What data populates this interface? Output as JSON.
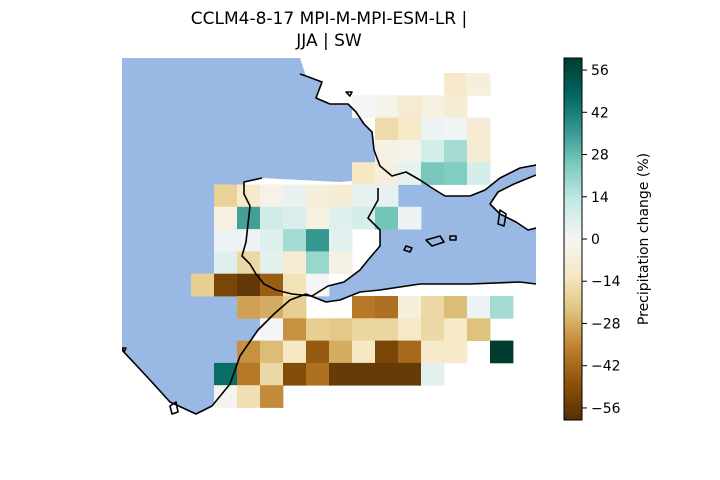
{
  "title": {
    "line1": "CCLM4-8-17 MPI-M-MPI-ESM-LR |",
    "line2": "JJA | SW"
  },
  "colorbar": {
    "label": "Precipitation change (%)",
    "vmin": -60,
    "vmax": 60,
    "ticks": [
      56,
      42,
      28,
      14,
      0,
      -14,
      -28,
      -42,
      -56
    ],
    "tick_labels": [
      "56",
      "42",
      "28",
      "14",
      "0",
      "−14",
      "−28",
      "−42",
      "−56"
    ],
    "colormap": "BrBG",
    "stops": [
      "#543005",
      "#8c510a",
      "#bf812d",
      "#dfc27d",
      "#f6e8c3",
      "#f5f5f5",
      "#c7eae5",
      "#80cdc1",
      "#35978f",
      "#01665e",
      "#003c30"
    ]
  },
  "map": {
    "ocean_color": "#9ab8e4",
    "coast_color": "#000000",
    "columns": [
      "c0",
      "c1",
      "c2",
      "c3",
      "c4",
      "c5",
      "c6",
      "c7",
      "c8",
      "c9",
      "c10",
      "c11",
      "c12",
      "c13",
      "c14",
      "c15",
      "c16",
      "c17"
    ],
    "rows": [
      "r0",
      "r1",
      "r2",
      "r3",
      "r4",
      "r5",
      "r6",
      "r7",
      "r8",
      "r9",
      "r10",
      "r11",
      "r12",
      "r13",
      "r14",
      "r15"
    ]
  },
  "chart_data": {
    "type": "heatmap",
    "title": "CCLM4-8-17 MPI-M-MPI-ESM-LR | JJA | SW",
    "colorbar_label": "Precipitation change (%)",
    "vrange": [
      -60,
      60
    ],
    "grid_origin": "row 0 = north, column 0 = west",
    "cells": [
      {
        "row": 0,
        "col": 14,
        "value": -10
      },
      {
        "row": 0,
        "col": 15,
        "value": -6
      },
      {
        "row": 1,
        "col": 10,
        "value": 0
      },
      {
        "row": 1,
        "col": 11,
        "value": -3
      },
      {
        "row": 1,
        "col": 12,
        "value": -9
      },
      {
        "row": 1,
        "col": 13,
        "value": -5
      },
      {
        "row": 1,
        "col": 14,
        "value": -8
      },
      {
        "row": 2,
        "col": 11,
        "value": -16
      },
      {
        "row": 2,
        "col": 12,
        "value": -11
      },
      {
        "row": 2,
        "col": 13,
        "value": 2
      },
      {
        "row": 2,
        "col": 14,
        "value": 1
      },
      {
        "row": 2,
        "col": 15,
        "value": -8
      },
      {
        "row": 3,
        "col": 11,
        "value": -4
      },
      {
        "row": 3,
        "col": 12,
        "value": -3
      },
      {
        "row": 3,
        "col": 13,
        "value": 9
      },
      {
        "row": 3,
        "col": 14,
        "value": 18
      },
      {
        "row": 3,
        "col": 15,
        "value": -8
      },
      {
        "row": 4,
        "col": 10,
        "value": -12
      },
      {
        "row": 4,
        "col": 11,
        "value": -6
      },
      {
        "row": 4,
        "col": 12,
        "value": 4
      },
      {
        "row": 4,
        "col": 13,
        "value": 25
      },
      {
        "row": 4,
        "col": 14,
        "value": 24
      },
      {
        "row": 4,
        "col": 15,
        "value": 8
      },
      {
        "row": 5,
        "col": 4,
        "value": -19
      },
      {
        "row": 5,
        "col": 5,
        "value": -10
      },
      {
        "row": 5,
        "col": 6,
        "value": -3
      },
      {
        "row": 5,
        "col": 7,
        "value": 3
      },
      {
        "row": 5,
        "col": 8,
        "value": -6
      },
      {
        "row": 5,
        "col": 9,
        "value": -8
      },
      {
        "row": 5,
        "col": 10,
        "value": 4
      },
      {
        "row": 5,
        "col": 11,
        "value": 4
      },
      {
        "row": 6,
        "col": 4,
        "value": -5
      },
      {
        "row": 6,
        "col": 5,
        "value": 34
      },
      {
        "row": 6,
        "col": 6,
        "value": 10
      },
      {
        "row": 6,
        "col": 7,
        "value": 7
      },
      {
        "row": 6,
        "col": 8,
        "value": -5
      },
      {
        "row": 6,
        "col": 9,
        "value": 6
      },
      {
        "row": 6,
        "col": 10,
        "value": 8
      },
      {
        "row": 6,
        "col": 11,
        "value": 26
      },
      {
        "row": 6,
        "col": 12,
        "value": 2
      },
      {
        "row": 7,
        "col": 4,
        "value": 2
      },
      {
        "row": 7,
        "col": 5,
        "value": 2
      },
      {
        "row": 7,
        "col": 6,
        "value": 6
      },
      {
        "row": 7,
        "col": 7,
        "value": 18
      },
      {
        "row": 7,
        "col": 8,
        "value": 36
      },
      {
        "row": 7,
        "col": 9,
        "value": 5
      },
      {
        "row": 8,
        "col": 4,
        "value": 6
      },
      {
        "row": 8,
        "col": 5,
        "value": -17
      },
      {
        "row": 8,
        "col": 6,
        "value": 5
      },
      {
        "row": 8,
        "col": 7,
        "value": -8
      },
      {
        "row": 8,
        "col": 8,
        "value": 20
      },
      {
        "row": 8,
        "col": 9,
        "value": -4
      },
      {
        "row": 9,
        "col": 3,
        "value": -20
      },
      {
        "row": 9,
        "col": 4,
        "value": -52
      },
      {
        "row": 9,
        "col": 5,
        "value": -57
      },
      {
        "row": 9,
        "col": 6,
        "value": -45
      },
      {
        "row": 9,
        "col": 7,
        "value": -14
      },
      {
        "row": 9,
        "col": 8,
        "value": 0
      },
      {
        "row": 10,
        "col": 5,
        "value": -30
      },
      {
        "row": 10,
        "col": 6,
        "value": -28
      },
      {
        "row": 10,
        "col": 7,
        "value": -20
      },
      {
        "row": 10,
        "col": 10,
        "value": -38
      },
      {
        "row": 10,
        "col": 11,
        "value": -40
      },
      {
        "row": 10,
        "col": 12,
        "value": -6
      },
      {
        "row": 10,
        "col": 13,
        "value": -17
      },
      {
        "row": 10,
        "col": 14,
        "value": -25
      },
      {
        "row": 10,
        "col": 15,
        "value": 2
      },
      {
        "row": 10,
        "col": 16,
        "value": 18
      },
      {
        "row": 11,
        "col": 6,
        "value": 0
      },
      {
        "row": 11,
        "col": 7,
        "value": -33
      },
      {
        "row": 11,
        "col": 8,
        "value": -20
      },
      {
        "row": 11,
        "col": 9,
        "value": -22
      },
      {
        "row": 11,
        "col": 10,
        "value": -18
      },
      {
        "row": 11,
        "col": 11,
        "value": -18
      },
      {
        "row": 11,
        "col": 12,
        "value": -11
      },
      {
        "row": 11,
        "col": 13,
        "value": -17
      },
      {
        "row": 11,
        "col": 14,
        "value": -10
      },
      {
        "row": 11,
        "col": 15,
        "value": -24
      },
      {
        "row": 12,
        "col": 5,
        "value": -33
      },
      {
        "row": 12,
        "col": 6,
        "value": -25
      },
      {
        "row": 12,
        "col": 7,
        "value": -12
      },
      {
        "row": 12,
        "col": 8,
        "value": -46
      },
      {
        "row": 12,
        "col": 9,
        "value": -28
      },
      {
        "row": 12,
        "col": 10,
        "value": -12
      },
      {
        "row": 12,
        "col": 11,
        "value": -52
      },
      {
        "row": 12,
        "col": 12,
        "value": -42
      },
      {
        "row": 12,
        "col": 13,
        "value": -10
      },
      {
        "row": 12,
        "col": 14,
        "value": -10
      },
      {
        "row": 12,
        "col": 16,
        "value": 60
      },
      {
        "row": 13,
        "col": 4,
        "value": 46
      },
      {
        "row": 13,
        "col": 5,
        "value": -38
      },
      {
        "row": 13,
        "col": 6,
        "value": -17
      },
      {
        "row": 13,
        "col": 7,
        "value": -50
      },
      {
        "row": 13,
        "col": 8,
        "value": -40
      },
      {
        "row": 13,
        "col": 9,
        "value": -56
      },
      {
        "row": 13,
        "col": 10,
        "value": -56
      },
      {
        "row": 13,
        "col": 11,
        "value": -56
      },
      {
        "row": 13,
        "col": 12,
        "value": -56
      },
      {
        "row": 13,
        "col": 13,
        "value": 5
      },
      {
        "row": 14,
        "col": 4,
        "value": -2
      },
      {
        "row": 14,
        "col": 5,
        "value": -15
      },
      {
        "row": 14,
        "col": 6,
        "value": -34
      }
    ]
  }
}
